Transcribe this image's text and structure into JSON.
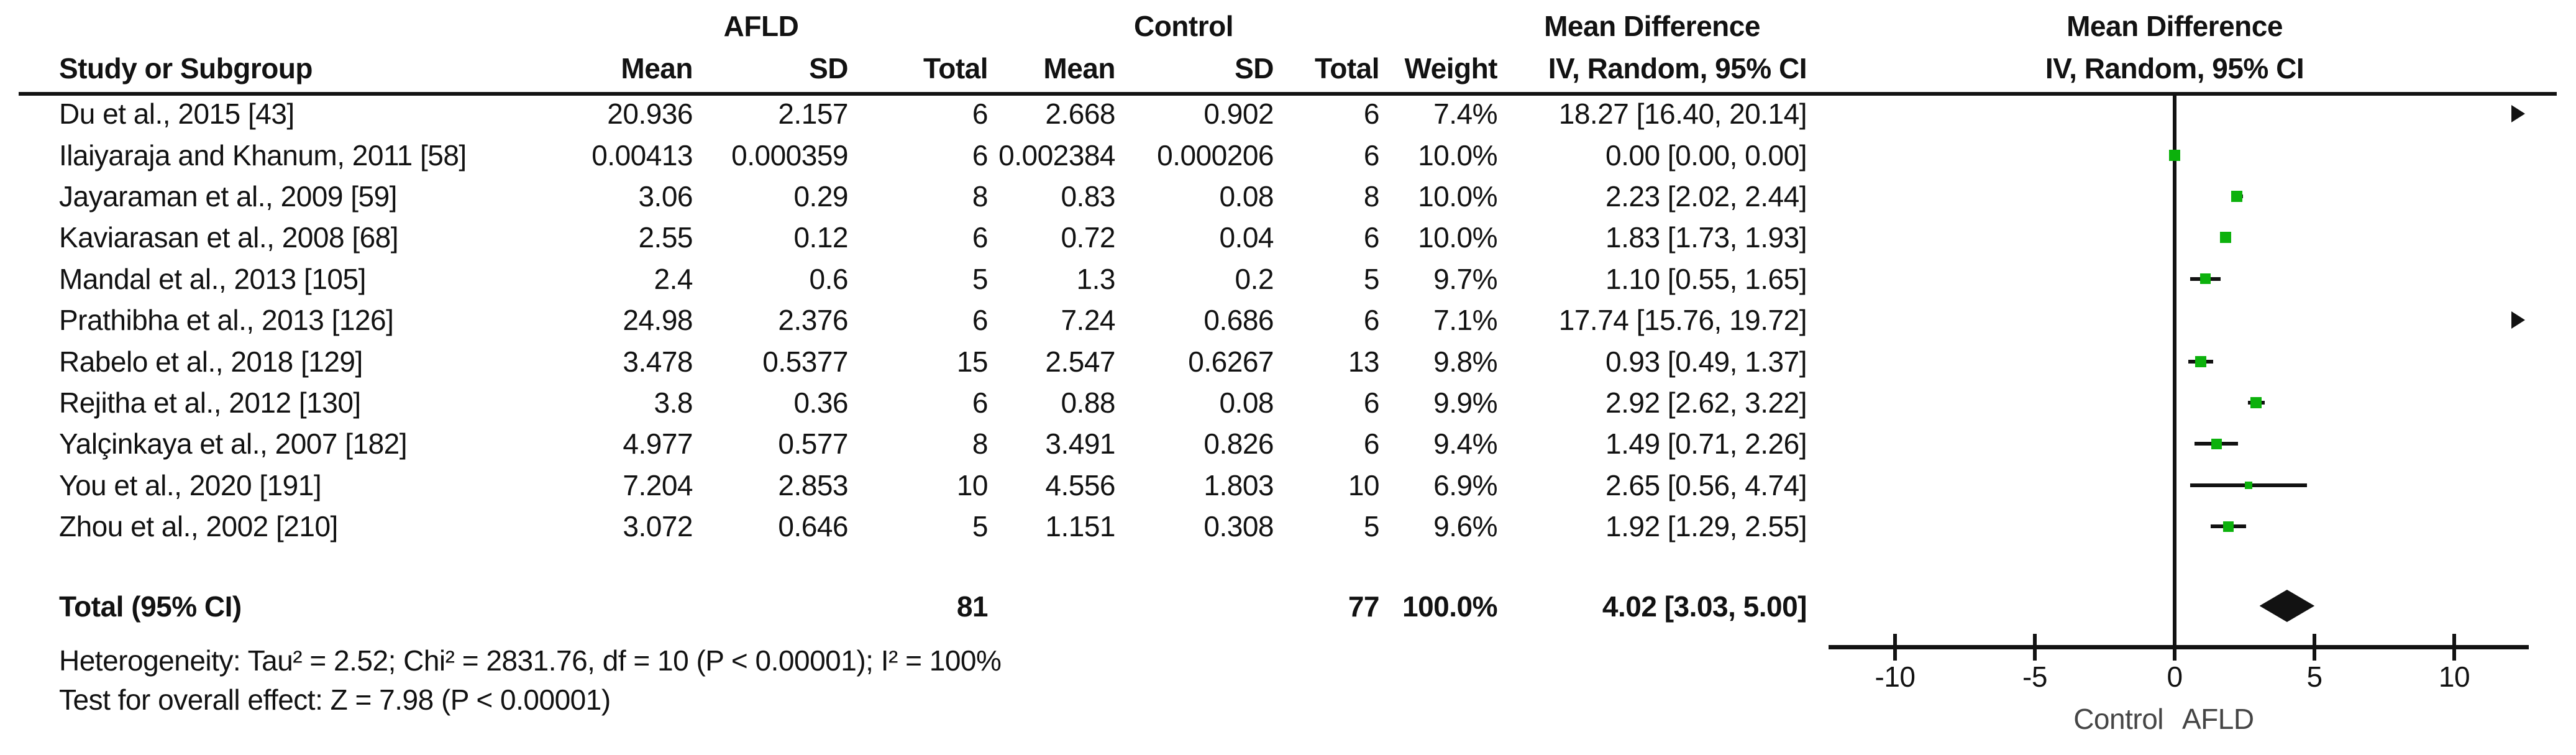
{
  "table": {
    "group_headers": {
      "afld": "AFLD",
      "control": "Control",
      "md_text": "Mean Difference",
      "md_plot": "Mean Difference"
    },
    "columns": {
      "study": "Study or Subgroup",
      "mean": "Mean",
      "sd": "SD",
      "total": "Total",
      "mean2": "Mean",
      "sd2": "SD",
      "total2": "Total",
      "weight": "Weight",
      "ci": "IV, Random, 95% CI",
      "ci_plot": "IV, Random, 95% CI"
    },
    "rows": [
      {
        "study": "Du et al., 2015 [43]",
        "mean": "20.936",
        "sd": "2.157",
        "total": "6",
        "c_mean": "2.668",
        "c_sd": "0.902",
        "c_total": "6",
        "weight": "7.4%",
        "ci": "18.27 [16.40, 20.14]"
      },
      {
        "study": "Ilaiyaraja and Khanum, 2011 [58]",
        "mean": "0.00413",
        "sd": "0.000359",
        "total": "6",
        "c_mean": "0.002384",
        "c_sd": "0.000206",
        "c_total": "6",
        "weight": "10.0%",
        "ci": "0.00 [0.00, 0.00]"
      },
      {
        "study": "Jayaraman et al., 2009 [59]",
        "mean": "3.06",
        "sd": "0.29",
        "total": "8",
        "c_mean": "0.83",
        "c_sd": "0.08",
        "c_total": "8",
        "weight": "10.0%",
        "ci": "2.23 [2.02, 2.44]"
      },
      {
        "study": "Kaviarasan et al., 2008 [68]",
        "mean": "2.55",
        "sd": "0.12",
        "total": "6",
        "c_mean": "0.72",
        "c_sd": "0.04",
        "c_total": "6",
        "weight": "10.0%",
        "ci": "1.83 [1.73, 1.93]"
      },
      {
        "study": "Mandal et al., 2013 [105]",
        "mean": "2.4",
        "sd": "0.6",
        "total": "5",
        "c_mean": "1.3",
        "c_sd": "0.2",
        "c_total": "5",
        "weight": "9.7%",
        "ci": "1.10 [0.55, 1.65]"
      },
      {
        "study": "Prathibha et al., 2013 [126]",
        "mean": "24.98",
        "sd": "2.376",
        "total": "6",
        "c_mean": "7.24",
        "c_sd": "0.686",
        "c_total": "6",
        "weight": "7.1%",
        "ci": "17.74 [15.76, 19.72]"
      },
      {
        "study": "Rabelo et al., 2018 [129]",
        "mean": "3.478",
        "sd": "0.5377",
        "total": "15",
        "c_mean": "2.547",
        "c_sd": "0.6267",
        "c_total": "13",
        "weight": "9.8%",
        "ci": "0.93 [0.49, 1.37]"
      },
      {
        "study": "Rejitha et al., 2012 [130]",
        "mean": "3.8",
        "sd": "0.36",
        "total": "6",
        "c_mean": "0.88",
        "c_sd": "0.08",
        "c_total": "6",
        "weight": "9.9%",
        "ci": "2.92 [2.62, 3.22]"
      },
      {
        "study": "Yalçinkaya et al., 2007 [182]",
        "mean": "4.977",
        "sd": "0.577",
        "total": "8",
        "c_mean": "3.491",
        "c_sd": "0.826",
        "c_total": "6",
        "weight": "9.4%",
        "ci": "1.49 [0.71, 2.26]"
      },
      {
        "study": "You et al., 2020 [191]",
        "mean": "7.204",
        "sd": "2.853",
        "total": "10",
        "c_mean": "4.556",
        "c_sd": "1.803",
        "c_total": "10",
        "weight": "6.9%",
        "ci": "2.65 [0.56, 4.74]"
      },
      {
        "study": "Zhou et al., 2002 [210]",
        "mean": "3.072",
        "sd": "0.646",
        "total": "5",
        "c_mean": "1.151",
        "c_sd": "0.308",
        "c_total": "5",
        "weight": "9.6%",
        "ci": "1.92 [1.29, 2.55]"
      }
    ],
    "total_row": {
      "label": "Total (95% CI)",
      "total": "81",
      "c_total": "77",
      "weight": "100.0%",
      "ci": "4.02 [3.03, 5.00]"
    }
  },
  "footnotes": {
    "heterogeneity": "Heterogeneity: Tau² = 2.52; Chi² = 2831.76, df = 10 (P < 0.00001); I² = 100%",
    "overall": "Test for overall effect: Z = 7.98 (P < 0.00001)"
  },
  "axis": {
    "left_label": "Control",
    "right_label": "AFLD"
  },
  "colors": {
    "square": "#0cb10c",
    "ink": "#121212",
    "axis_label": "#454545"
  },
  "chart_data": {
    "type": "forest",
    "effect_measure": "Mean Difference, IV, Random, 95% CI",
    "points": [
      {
        "study": "Du et al., 2015 [43]",
        "md": 18.27,
        "lo": 16.4,
        "hi": 20.14,
        "weight_pct": 7.4,
        "offscale": "right"
      },
      {
        "study": "Ilaiyaraja and Khanum, 2011 [58]",
        "md": 0.0,
        "lo": 0.0,
        "hi": 0.0,
        "weight_pct": 10.0,
        "offscale": null
      },
      {
        "study": "Jayaraman et al., 2009 [59]",
        "md": 2.23,
        "lo": 2.02,
        "hi": 2.44,
        "weight_pct": 10.0,
        "offscale": null
      },
      {
        "study": "Kaviarasan et al., 2008 [68]",
        "md": 1.83,
        "lo": 1.73,
        "hi": 1.93,
        "weight_pct": 10.0,
        "offscale": null
      },
      {
        "study": "Mandal et al., 2013 [105]",
        "md": 1.1,
        "lo": 0.55,
        "hi": 1.65,
        "weight_pct": 9.7,
        "offscale": null
      },
      {
        "study": "Prathibha et al., 2013 [126]",
        "md": 17.74,
        "lo": 15.76,
        "hi": 19.72,
        "weight_pct": 7.1,
        "offscale": "right"
      },
      {
        "study": "Rabelo et al., 2018 [129]",
        "md": 0.93,
        "lo": 0.49,
        "hi": 1.37,
        "weight_pct": 9.8,
        "offscale": null
      },
      {
        "study": "Rejitha et al., 2012 [130]",
        "md": 2.92,
        "lo": 2.62,
        "hi": 3.22,
        "weight_pct": 9.9,
        "offscale": null
      },
      {
        "study": "Yalçinkaya et al., 2007 [182]",
        "md": 1.49,
        "lo": 0.71,
        "hi": 2.26,
        "weight_pct": 9.4,
        "offscale": null
      },
      {
        "study": "You et al., 2020 [191]",
        "md": 2.65,
        "lo": 0.56,
        "hi": 4.74,
        "weight_pct": 6.9,
        "offscale": null
      },
      {
        "study": "Zhou et al., 2002 [210]",
        "md": 1.92,
        "lo": 1.29,
        "hi": 2.55,
        "weight_pct": 9.6,
        "offscale": null
      }
    ],
    "total": {
      "md": 4.02,
      "lo": 3.03,
      "hi": 5.0
    },
    "xticks": [
      -10,
      -5,
      0,
      5,
      10
    ],
    "xlim": [
      -12.4,
      12.7
    ],
    "xlabel_left": "Control",
    "xlabel_right": "AFLD"
  }
}
